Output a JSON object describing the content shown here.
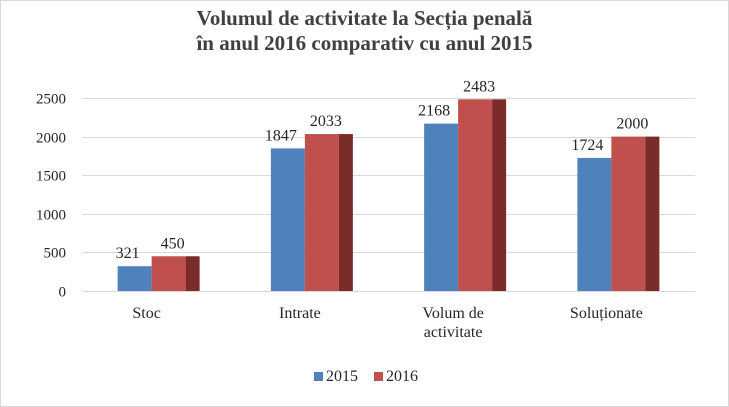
{
  "chart_data": {
    "type": "bar",
    "title_lines": [
      "Volumul de activitate la Secția penală",
      "în anul 2016 comparativ cu anul 2015"
    ],
    "categories": [
      [
        "Stoc"
      ],
      [
        "Intrate"
      ],
      [
        "Volum de",
        "activitate"
      ],
      [
        "Soluționate"
      ]
    ],
    "series": [
      {
        "name": "2015",
        "values": [
          321,
          1847,
          2168,
          1724
        ],
        "color": "#4f81bd"
      },
      {
        "name": "2016",
        "values": [
          450,
          2033,
          2483,
          2000
        ],
        "color": "#c0504d",
        "side_color": "#7b2c2a"
      }
    ],
    "ylim": [
      0,
      2500
    ],
    "yticks": [
      0,
      500,
      1000,
      1500,
      2000,
      2500
    ],
    "grid": true,
    "legend": "bottom"
  }
}
